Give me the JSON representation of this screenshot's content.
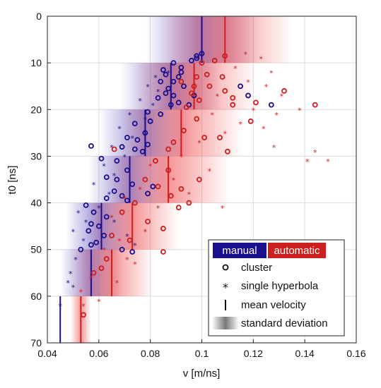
{
  "chart_data": {
    "type": "scatter",
    "xlabel": "v [m/ns]",
    "ylabel": "t0 [ns]",
    "xlim": [
      0.04,
      0.16
    ],
    "ylim": [
      0,
      70
    ],
    "y_reversed": true,
    "grid": true,
    "x_ticks": [
      "0.04",
      "0.06",
      "0.08",
      "0.1",
      "0.12",
      "0.14",
      "0.16"
    ],
    "y_ticks": [
      "0",
      "10",
      "20",
      "30",
      "40",
      "50",
      "60",
      "70"
    ],
    "legend_position": "bottom-right",
    "legend": {
      "manual": "manual",
      "automatic": "automatic",
      "cluster": "cluster",
      "single": "single hyperbola",
      "mean": "mean velocity",
      "std": "standard deviation"
    },
    "colors": {
      "manual": "#1a0f8c",
      "automatic": "#cc1f1f"
    },
    "bins": [
      {
        "t0_range": [
          0,
          10
        ],
        "manual_mean": 0.1,
        "manual_std": 0.011,
        "auto_mean": 0.109,
        "auto_std": 0.013
      },
      {
        "t0_range": [
          10,
          20
        ],
        "manual_mean": 0.088,
        "manual_std": 0.01,
        "auto_mean": 0.097,
        "auto_std": 0.012
      },
      {
        "t0_range": [
          20,
          30
        ],
        "manual_mean": 0.078,
        "manual_std": 0.009,
        "auto_mean": 0.092,
        "auto_std": 0.012
      },
      {
        "t0_range": [
          30,
          40
        ],
        "manual_mean": 0.072,
        "manual_std": 0.008,
        "auto_mean": 0.087,
        "auto_std": 0.012
      },
      {
        "t0_range": [
          40,
          50
        ],
        "manual_mean": 0.061,
        "manual_std": 0.007,
        "auto_mean": 0.073,
        "auto_std": 0.009
      },
      {
        "t0_range": [
          50,
          60
        ],
        "manual_mean": 0.057,
        "manual_std": 0.006,
        "auto_mean": 0.065,
        "auto_std": 0.008
      },
      {
        "t0_range": [
          60,
          70
        ],
        "manual_mean": 0.045,
        "manual_std": 0.0,
        "auto_mean": 0.053,
        "auto_std": 0.002
      }
    ],
    "series": [
      {
        "name": "manual",
        "marker": "cluster",
        "points": [
          [
            0.098,
            8.5
          ],
          [
            0.1,
            8
          ],
          [
            0.096,
            9.5
          ],
          [
            0.089,
            10
          ],
          [
            0.085,
            11.5
          ],
          [
            0.092,
            11
          ],
          [
            0.086,
            12.5
          ],
          [
            0.091,
            13
          ],
          [
            0.084,
            14
          ],
          [
            0.089,
            14
          ],
          [
            0.087,
            15.5
          ],
          [
            0.093,
            15
          ],
          [
            0.086,
            16.5
          ],
          [
            0.089,
            17
          ],
          [
            0.097,
            17
          ],
          [
            0.083,
            17.5
          ],
          [
            0.091,
            18.5
          ],
          [
            0.088,
            19
          ],
          [
            0.095,
            19
          ],
          [
            0.079,
            20.5
          ],
          [
            0.084,
            21
          ],
          [
            0.08,
            22.5
          ],
          [
            0.074,
            23
          ],
          [
            0.078,
            25
          ],
          [
            0.071,
            26
          ],
          [
            0.075,
            26.5
          ],
          [
            0.079,
            27.5
          ],
          [
            0.069,
            28
          ],
          [
            0.074,
            28.5
          ],
          [
            0.077,
            29
          ],
          [
            0.057,
            27.8
          ],
          [
            0.061,
            30.5
          ],
          [
            0.067,
            31
          ],
          [
            0.071,
            33
          ],
          [
            0.063,
            34.5
          ],
          [
            0.067,
            35
          ],
          [
            0.073,
            36
          ],
          [
            0.081,
            36.5
          ],
          [
            0.066,
            37.5
          ],
          [
            0.069,
            38.5
          ],
          [
            0.079,
            38
          ],
          [
            0.063,
            39
          ],
          [
            0.071,
            39.5
          ],
          [
            0.055,
            40.5
          ],
          [
            0.058,
            42
          ],
          [
            0.063,
            43
          ],
          [
            0.057,
            44.5
          ],
          [
            0.06,
            45
          ],
          [
            0.056,
            46
          ],
          [
            0.062,
            47
          ],
          [
            0.059,
            48.5
          ],
          [
            0.057,
            49
          ],
          [
            0.053,
            50
          ],
          [
            0.069,
            50
          ],
          [
            0.073,
            50.5
          ],
          [
            0.115,
            15
          ],
          [
            0.127,
            19
          ],
          [
            0.118,
            17
          ],
          [
            0.098,
            9
          ],
          [
            0.092,
            12
          ]
        ]
      },
      {
        "name": "manual",
        "marker": "single",
        "points": [
          [
            0.087,
            12
          ],
          [
            0.082,
            13
          ],
          [
            0.079,
            15
          ],
          [
            0.083,
            16
          ],
          [
            0.076,
            18
          ],
          [
            0.081,
            19
          ],
          [
            0.072,
            21
          ],
          [
            0.078,
            22
          ],
          [
            0.068,
            24
          ],
          [
            0.073,
            26
          ],
          [
            0.065,
            28
          ],
          [
            0.07,
            30
          ],
          [
            0.062,
            32
          ],
          [
            0.066,
            34
          ],
          [
            0.058,
            36
          ],
          [
            0.064,
            38
          ],
          [
            0.052,
            42
          ],
          [
            0.055,
            44
          ],
          [
            0.05,
            46
          ],
          [
            0.054,
            48
          ],
          [
            0.051,
            52
          ],
          [
            0.049,
            55
          ],
          [
            0.048,
            57
          ],
          [
            0.05,
            58
          ],
          [
            0.06,
            41
          ],
          [
            0.066,
            44
          ],
          [
            0.071,
            47
          ],
          [
            0.074,
            49
          ],
          [
            0.045,
            62
          ]
        ]
      },
      {
        "name": "automatic",
        "marker": "cluster",
        "points": [
          [
            0.109,
            8.5
          ],
          [
            0.105,
            9.5
          ],
          [
            0.1,
            10
          ],
          [
            0.102,
            12.5
          ],
          [
            0.098,
            13
          ],
          [
            0.108,
            13
          ],
          [
            0.092,
            14
          ],
          [
            0.097,
            15
          ],
          [
            0.103,
            15
          ],
          [
            0.096,
            16.5
          ],
          [
            0.109,
            16
          ],
          [
            0.112,
            17.5
          ],
          [
            0.099,
            18
          ],
          [
            0.094,
            19.5
          ],
          [
            0.121,
            18.5
          ],
          [
            0.112,
            19
          ],
          [
            0.132,
            16
          ],
          [
            0.119,
            22.5
          ],
          [
            0.098,
            22
          ],
          [
            0.093,
            24.5
          ],
          [
            0.101,
            26
          ],
          [
            0.089,
            27
          ],
          [
            0.087,
            28.5
          ],
          [
            0.11,
            29
          ],
          [
            0.066,
            28.5
          ],
          [
            0.107,
            26
          ],
          [
            0.082,
            31
          ],
          [
            0.087,
            33
          ],
          [
            0.078,
            35
          ],
          [
            0.083,
            36.5
          ],
          [
            0.088,
            38.5
          ],
          [
            0.092,
            37
          ],
          [
            0.095,
            40
          ],
          [
            0.074,
            40
          ],
          [
            0.069,
            42
          ],
          [
            0.079,
            44
          ],
          [
            0.085,
            45.5
          ],
          [
            0.065,
            47
          ],
          [
            0.072,
            48
          ],
          [
            0.085,
            50.5
          ],
          [
            0.063,
            52
          ],
          [
            0.061,
            54
          ],
          [
            0.058,
            55
          ],
          [
            0.054,
            64
          ],
          [
            0.144,
            19
          ],
          [
            0.099,
            35
          ],
          [
            0.091,
            41
          ]
        ]
      },
      {
        "name": "automatic",
        "marker": "single",
        "points": [
          [
            0.117,
            8
          ],
          [
            0.123,
            9
          ],
          [
            0.113,
            11
          ],
          [
            0.127,
            12
          ],
          [
            0.118,
            14
          ],
          [
            0.125,
            15
          ],
          [
            0.131,
            17
          ],
          [
            0.106,
            17
          ],
          [
            0.12,
            20
          ],
          [
            0.138,
            20
          ],
          [
            0.129,
            21
          ],
          [
            0.104,
            21
          ],
          [
            0.115,
            23
          ],
          [
            0.124,
            24
          ],
          [
            0.109,
            25
          ],
          [
            0.099,
            27
          ],
          [
            0.128,
            28
          ],
          [
            0.141,
            31
          ],
          [
            0.144,
            29
          ],
          [
            0.149,
            31
          ],
          [
            0.092,
            30
          ],
          [
            0.08,
            32
          ],
          [
            0.103,
            33
          ],
          [
            0.089,
            35
          ],
          [
            0.076,
            37
          ],
          [
            0.095,
            38
          ],
          [
            0.07,
            39
          ],
          [
            0.083,
            41
          ],
          [
            0.108,
            41
          ],
          [
            0.065,
            43
          ],
          [
            0.078,
            46
          ],
          [
            0.068,
            48
          ],
          [
            0.062,
            50
          ],
          [
            0.071,
            52
          ],
          [
            0.057,
            56
          ],
          [
            0.053,
            59
          ],
          [
            0.06,
            61
          ],
          [
            0.054,
            62
          ],
          [
            0.067,
            57
          ],
          [
            0.074,
            53
          ]
        ]
      }
    ]
  }
}
